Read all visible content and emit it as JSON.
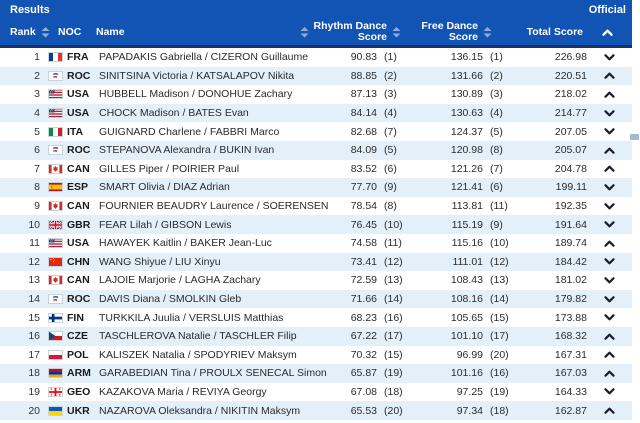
{
  "header": {
    "title": "Results",
    "status": "Official",
    "columns": {
      "rank": "Rank",
      "noc": "NOC",
      "name": "Name",
      "rhythm_line1": "Rhythm Dance",
      "rhythm_line2": "Score",
      "free_line1": "Free Dance",
      "free_line2": "Score",
      "total": "Total Score"
    },
    "sort": {
      "active_column": "total_score",
      "direction": "up"
    }
  },
  "colors": {
    "header_bg": "#1254b4",
    "header_separator": "#17316b",
    "row_alt_bg": "#e3f0fa",
    "sort_icon": "#8fadd9",
    "row_chevron": "#1d1d2b"
  },
  "rows": [
    {
      "rank": "1",
      "noc": "FRA",
      "name": "PAPADAKIS Gabriella / CIZERON Guillaume",
      "rhythm_score": "90.83",
      "rhythm_rank": "(1)",
      "free_score": "136.15",
      "free_rank": "(1)",
      "total_score": "226.98",
      "expand_state": "down"
    },
    {
      "rank": "2",
      "noc": "ROC",
      "name": "SINITSINA Victoria / KATSALAPOV Nikita",
      "rhythm_score": "88.85",
      "rhythm_rank": "(2)",
      "free_score": "131.66",
      "free_rank": "(2)",
      "total_score": "220.51",
      "expand_state": "up"
    },
    {
      "rank": "3",
      "noc": "USA",
      "name": "HUBBELL Madison / DONOHUE Zachary",
      "rhythm_score": "87.13",
      "rhythm_rank": "(3)",
      "free_score": "130.89",
      "free_rank": "(3)",
      "total_score": "218.02",
      "expand_state": "up"
    },
    {
      "rank": "4",
      "noc": "USA",
      "name": "CHOCK Madison / BATES Evan",
      "rhythm_score": "84.14",
      "rhythm_rank": "(4)",
      "free_score": "130.63",
      "free_rank": "(4)",
      "total_score": "214.77",
      "expand_state": "down"
    },
    {
      "rank": "5",
      "noc": "ITA",
      "name": "GUIGNARD Charlene / FABBRI Marco",
      "rhythm_score": "82.68",
      "rhythm_rank": "(7)",
      "free_score": "124.37",
      "free_rank": "(5)",
      "total_score": "207.05",
      "expand_state": "down"
    },
    {
      "rank": "6",
      "noc": "ROC",
      "name": "STEPANOVA Alexandra / BUKIN Ivan",
      "rhythm_score": "84.09",
      "rhythm_rank": "(5)",
      "free_score": "120.98",
      "free_rank": "(8)",
      "total_score": "205.07",
      "expand_state": "up"
    },
    {
      "rank": "7",
      "noc": "CAN",
      "name": "GILLES Piper / POIRIER Paul",
      "rhythm_score": "83.52",
      "rhythm_rank": "(6)",
      "free_score": "121.26",
      "free_rank": "(7)",
      "total_score": "204.78",
      "expand_state": "up"
    },
    {
      "rank": "8",
      "noc": "ESP",
      "name": "SMART Olivia / DIAZ Adrian",
      "rhythm_score": "77.70",
      "rhythm_rank": "(9)",
      "free_score": "121.41",
      "free_rank": "(6)",
      "total_score": "199.11",
      "expand_state": "down"
    },
    {
      "rank": "9",
      "noc": "CAN",
      "name": "FOURNIER BEAUDRY Laurence / SOERENSEN Nikolaj",
      "rhythm_score": "78.54",
      "rhythm_rank": "(8)",
      "free_score": "113.81",
      "free_rank": "(11)",
      "total_score": "192.35",
      "expand_state": "down"
    },
    {
      "rank": "10",
      "noc": "GBR",
      "name": "FEAR Lilah / GIBSON Lewis",
      "rhythm_score": "76.45",
      "rhythm_rank": "(10)",
      "free_score": "115.19",
      "free_rank": "(9)",
      "total_score": "191.64",
      "expand_state": "down"
    },
    {
      "rank": "11",
      "noc": "USA",
      "name": "HAWAYEK Kaitlin / BAKER Jean-Luc",
      "rhythm_score": "74.58",
      "rhythm_rank": "(11)",
      "free_score": "115.16",
      "free_rank": "(10)",
      "total_score": "189.74",
      "expand_state": "up"
    },
    {
      "rank": "12",
      "noc": "CHN",
      "name": "WANG Shiyue / LIU Xinyu",
      "rhythm_score": "73.41",
      "rhythm_rank": "(12)",
      "free_score": "111.01",
      "free_rank": "(12)",
      "total_score": "184.42",
      "expand_state": "down"
    },
    {
      "rank": "13",
      "noc": "CAN",
      "name": "LAJOIE Marjorie / LAGHA Zachary",
      "rhythm_score": "72.59",
      "rhythm_rank": "(13)",
      "free_score": "108.43",
      "free_rank": "(13)",
      "total_score": "181.02",
      "expand_state": "down"
    },
    {
      "rank": "14",
      "noc": "ROC",
      "name": "DAVIS Diana / SMOLKIN Gleb",
      "rhythm_score": "71.66",
      "rhythm_rank": "(14)",
      "free_score": "108.16",
      "free_rank": "(14)",
      "total_score": "179.82",
      "expand_state": "down"
    },
    {
      "rank": "15",
      "noc": "FIN",
      "name": "TURKKILA Juulia / VERSLUIS Matthias",
      "rhythm_score": "68.23",
      "rhythm_rank": "(16)",
      "free_score": "105.65",
      "free_rank": "(15)",
      "total_score": "173.88",
      "expand_state": "down"
    },
    {
      "rank": "16",
      "noc": "CZE",
      "name": "TASCHLEROVA Natalie / TASCHLER Filip",
      "rhythm_score": "67.22",
      "rhythm_rank": "(17)",
      "free_score": "101.10",
      "free_rank": "(17)",
      "total_score": "168.32",
      "expand_state": "up"
    },
    {
      "rank": "17",
      "noc": "POL",
      "name": "KALISZEK Natalia / SPODYRIEV Maksym",
      "rhythm_score": "70.32",
      "rhythm_rank": "(15)",
      "free_score": "96.99",
      "free_rank": "(20)",
      "total_score": "167.31",
      "expand_state": "up"
    },
    {
      "rank": "18",
      "noc": "ARM",
      "name": "GARABEDIAN Tina / PROULX SENECAL Simon",
      "rhythm_score": "65.87",
      "rhythm_rank": "(19)",
      "free_score": "101.16",
      "free_rank": "(16)",
      "total_score": "167.03",
      "expand_state": "up"
    },
    {
      "rank": "19",
      "noc": "GEO",
      "name": "KAZAKOVA Maria / REVIYA Georgy",
      "rhythm_score": "67.08",
      "rhythm_rank": "(18)",
      "free_score": "97.25",
      "free_rank": "(19)",
      "total_score": "164.33",
      "expand_state": "down"
    },
    {
      "rank": "20",
      "noc": "UKR",
      "name": "NAZAROVA Oleksandra / NIKITIN Maksym",
      "rhythm_score": "65.53",
      "rhythm_rank": "(20)",
      "free_score": "97.34",
      "free_rank": "(18)",
      "total_score": "162.87",
      "expand_state": "up"
    }
  ]
}
